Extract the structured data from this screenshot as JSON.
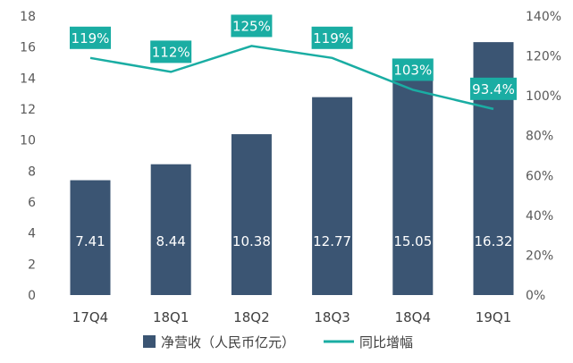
{
  "chart_data": {
    "type": "bar",
    "categories": [
      "17Q4",
      "18Q1",
      "18Q2",
      "18Q3",
      "18Q4",
      "19Q1"
    ],
    "series": [
      {
        "name": "净营收（人民币亿元）",
        "type": "bar",
        "axis": "left",
        "values": [
          7.41,
          8.44,
          10.38,
          12.77,
          15.05,
          16.32
        ],
        "labels": [
          "7.41",
          "8.44",
          "10.38",
          "12.77",
          "15.05",
          "16.32"
        ],
        "color": "#3b5573"
      },
      {
        "name": "同比增幅",
        "type": "line",
        "axis": "right",
        "values": [
          119,
          112,
          125,
          119,
          103,
          93.4
        ],
        "labels": [
          "119%",
          "112%",
          "125%",
          "119%",
          "103%",
          "93.4%"
        ],
        "color": "#1aada3"
      }
    ],
    "y_left": {
      "min": 0,
      "max": 18,
      "step": 2,
      "tick_labels": [
        "0",
        "2",
        "4",
        "6",
        "8",
        "10",
        "12",
        "14",
        "16",
        "18"
      ]
    },
    "y_right": {
      "min": 0,
      "max": 140,
      "step": 20,
      "tick_labels": [
        "0%",
        "20%",
        "40%",
        "60%",
        "80%",
        "100%",
        "120%",
        "140%"
      ]
    },
    "grid": false,
    "legend_position": "bottom"
  }
}
